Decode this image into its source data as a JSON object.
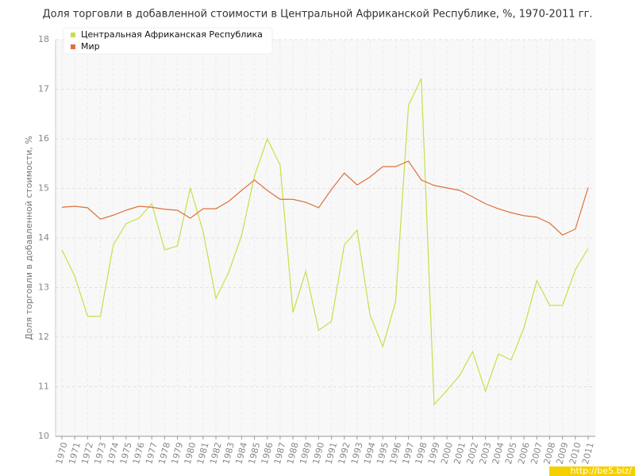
{
  "chart_data": {
    "type": "line",
    "title": "Доля торговли в добавленной стоимости в Центральной Африканской Республике, %, 1970-2011 гг.",
    "y_label": "Доля торговли в добавленной стоимости, %",
    "watermark": "http://be5.biz/",
    "x": [
      1970,
      1971,
      1972,
      1973,
      1974,
      1975,
      1976,
      1977,
      1978,
      1979,
      1980,
      1981,
      1982,
      1983,
      1984,
      1985,
      1986,
      1987,
      1988,
      1989,
      1990,
      1991,
      1992,
      1993,
      1994,
      1995,
      1996,
      1997,
      1998,
      1999,
      2000,
      2001,
      2002,
      2003,
      2004,
      2005,
      2006,
      2007,
      2008,
      2009,
      2010,
      2011
    ],
    "xlim": [
      1970,
      2011
    ],
    "ylim": [
      10,
      18
    ],
    "yticks": [
      10,
      11,
      12,
      13,
      14,
      15,
      16,
      17,
      18
    ],
    "grid": true,
    "legend": "top-left",
    "series": [
      {
        "name": "Центральная Африканская Республика",
        "color": "#c5e04a",
        "values": [
          13.76,
          13.23,
          12.42,
          12.42,
          13.86,
          14.29,
          14.4,
          14.69,
          13.76,
          13.84,
          15.01,
          14.13,
          12.78,
          13.31,
          14.05,
          15.25,
          16.0,
          15.47,
          12.5,
          13.33,
          12.14,
          12.32,
          13.86,
          14.16,
          12.45,
          11.81,
          12.72,
          16.67,
          17.22,
          10.64,
          10.93,
          11.23,
          11.71,
          10.91,
          11.66,
          11.54,
          12.19,
          13.14,
          12.64,
          12.64,
          13.36,
          13.79
        ]
      },
      {
        "name": "Мир",
        "color": "#e0703a",
        "values": [
          14.62,
          14.64,
          14.61,
          14.38,
          14.46,
          14.56,
          14.64,
          14.62,
          14.58,
          14.56,
          14.4,
          14.59,
          14.59,
          14.74,
          14.96,
          15.17,
          14.96,
          14.78,
          14.78,
          14.72,
          14.61,
          14.98,
          15.31,
          15.07,
          15.23,
          15.44,
          15.44,
          15.55,
          15.17,
          15.06,
          15.01,
          14.96,
          14.83,
          14.69,
          14.59,
          14.51,
          14.45,
          14.42,
          14.3,
          14.06,
          14.18,
          15.02
        ]
      }
    ]
  }
}
